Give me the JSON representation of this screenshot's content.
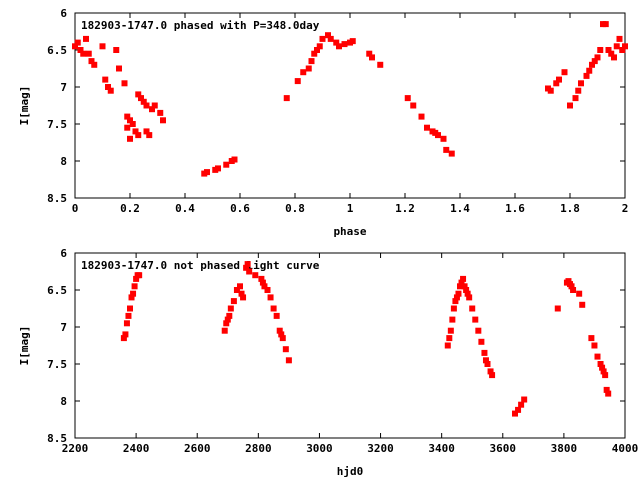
{
  "chart_data": [
    {
      "type": "scatter",
      "title": "182903-1747.0 phased with P=348.0day",
      "xlabel": "phase",
      "ylabel": "I[mag]",
      "xlim": [
        0,
        2
      ],
      "ylim": [
        8.5,
        6
      ],
      "y_inverted": true,
      "xticks": [
        "0",
        "0.2",
        "0.4",
        "0.6",
        "0.8",
        "1",
        "1.2",
        "1.4",
        "1.6",
        "1.8",
        "2"
      ],
      "yticks": [
        "6",
        "6.5",
        "7",
        "7.5",
        "8",
        "8.5"
      ],
      "marker_color": "#ff0000",
      "grid": false,
      "x": [
        0.0,
        0.01,
        0.02,
        0.03,
        0.04,
        0.05,
        0.06,
        0.07,
        0.1,
        0.11,
        0.12,
        0.13,
        0.15,
        0.16,
        0.18,
        0.19,
        0.19,
        0.2,
        0.2,
        0.21,
        0.22,
        0.23,
        0.23,
        0.24,
        0.25,
        0.26,
        0.26,
        0.27,
        0.28,
        0.29,
        0.31,
        0.32,
        0.47,
        0.48,
        0.51,
        0.52,
        0.55,
        0.57,
        0.58,
        0.77,
        0.81,
        0.83,
        0.85,
        0.86,
        0.87,
        0.88,
        0.89,
        0.9,
        0.92,
        0.93,
        0.95,
        0.96,
        0.98,
        1.0,
        1.01,
        1.07,
        1.08,
        1.11,
        1.21,
        1.23,
        1.26,
        1.28,
        1.3,
        1.31,
        1.32,
        1.34,
        1.35,
        1.37,
        1.72,
        1.73,
        1.75,
        1.76,
        1.78,
        1.8,
        1.82,
        1.83,
        1.84,
        1.86,
        1.87,
        1.88,
        1.89,
        1.9,
        1.91,
        1.92,
        1.93,
        1.94,
        1.95,
        1.96,
        1.97,
        1.98,
        1.99,
        2.0
      ],
      "y": [
        6.45,
        6.4,
        6.5,
        6.55,
        6.35,
        6.55,
        6.65,
        6.7,
        6.45,
        6.9,
        7.0,
        7.05,
        6.5,
        6.75,
        6.95,
        7.4,
        7.55,
        7.45,
        7.7,
        7.5,
        7.6,
        7.65,
        7.1,
        7.15,
        7.2,
        7.25,
        7.6,
        7.65,
        7.3,
        7.25,
        7.35,
        7.45,
        8.17,
        8.15,
        8.12,
        8.1,
        8.05,
        8.0,
        7.98,
        7.15,
        6.92,
        6.8,
        6.75,
        6.65,
        6.55,
        6.5,
        6.45,
        6.35,
        6.3,
        6.35,
        6.4,
        6.45,
        6.42,
        6.4,
        6.38,
        6.55,
        6.6,
        6.7,
        7.15,
        7.25,
        7.4,
        7.55,
        7.6,
        7.62,
        7.65,
        7.7,
        7.85,
        7.9,
        7.02,
        7.05,
        6.95,
        6.9,
        6.8,
        7.25,
        7.15,
        7.05,
        6.95,
        6.85,
        6.78,
        6.7,
        6.65,
        6.6,
        6.5,
        6.15,
        6.15,
        6.5,
        6.55,
        6.6,
        6.45,
        6.35,
        6.5,
        6.45
      ]
    },
    {
      "type": "scatter",
      "title": "182903-1747.0 not phased light curve",
      "xlabel": "hjd0",
      "ylabel": "I[mag]",
      "xlim": [
        2200,
        4000
      ],
      "ylim": [
        8.5,
        6
      ],
      "y_inverted": true,
      "xticks": [
        "2200",
        "2400",
        "2600",
        "2800",
        "3000",
        "3200",
        "3400",
        "3600",
        "3800",
        "4000"
      ],
      "yticks": [
        "6",
        "6.5",
        "7",
        "7.5",
        "8",
        "8.5"
      ],
      "marker_color": "#ff0000",
      "grid": false,
      "x": [
        2360,
        2365,
        2370,
        2375,
        2380,
        2385,
        2390,
        2395,
        2400,
        2405,
        2410,
        2690,
        2695,
        2700,
        2705,
        2710,
        2720,
        2730,
        2740,
        2745,
        2750,
        2760,
        2765,
        2770,
        2790,
        2810,
        2815,
        2820,
        2830,
        2840,
        2850,
        2860,
        2870,
        2875,
        2880,
        2890,
        2900,
        3420,
        3425,
        3430,
        3435,
        3440,
        3445,
        3450,
        3455,
        3460,
        3465,
        3470,
        3475,
        3480,
        3485,
        3490,
        3500,
        3510,
        3520,
        3530,
        3540,
        3545,
        3550,
        3560,
        3565,
        3640,
        3650,
        3660,
        3670,
        3780,
        3810,
        3815,
        3820,
        3825,
        3830,
        3850,
        3860,
        3890,
        3900,
        3910,
        3920,
        3925,
        3930,
        3935,
        3940,
        3945
      ],
      "y": [
        7.15,
        7.1,
        6.95,
        6.85,
        6.75,
        6.6,
        6.55,
        6.45,
        6.35,
        6.3,
        6.3,
        7.05,
        6.95,
        6.9,
        6.85,
        6.75,
        6.65,
        6.5,
        6.45,
        6.55,
        6.6,
        6.2,
        6.15,
        6.25,
        6.3,
        6.35,
        6.4,
        6.45,
        6.5,
        6.6,
        6.75,
        6.85,
        7.05,
        7.1,
        7.15,
        7.3,
        7.45,
        7.25,
        7.15,
        7.05,
        6.9,
        6.75,
        6.65,
        6.6,
        6.55,
        6.45,
        6.4,
        6.35,
        6.45,
        6.5,
        6.55,
        6.6,
        6.75,
        6.9,
        7.05,
        7.2,
        7.35,
        7.45,
        7.5,
        7.6,
        7.65,
        8.17,
        8.12,
        8.05,
        7.98,
        6.75,
        6.4,
        6.38,
        6.42,
        6.45,
        6.5,
        6.55,
        6.7,
        7.15,
        7.25,
        7.4,
        7.5,
        7.55,
        7.6,
        7.65,
        7.85,
        7.9
      ]
    }
  ]
}
